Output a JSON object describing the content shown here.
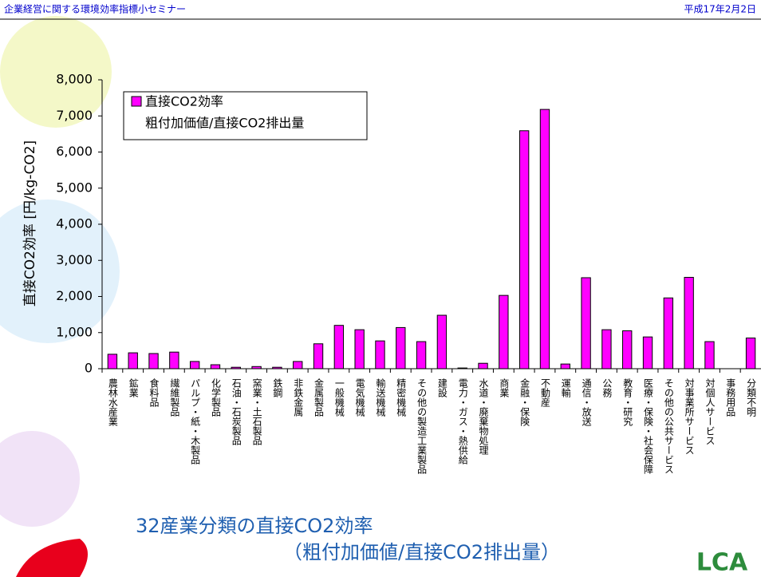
{
  "header": {
    "left": "企業経営に関する環境効率指標小セミナー",
    "right": "平成17年2月2日"
  },
  "chart_data": {
    "type": "bar",
    "y_axis_label": "直接CO2効率 [円/kg-CO2]",
    "legend_subtitle": "粗付加価値/直接CO2排出量",
    "categories": [
      "農林水産業",
      "鉱業",
      "食料品",
      "繊維製品",
      "パルプ・紙・木製品",
      "化学製品",
      "石油・石炭製品",
      "窯業・土石製品",
      "鉄鋼",
      "非鉄金属",
      "金属製品",
      "一般機械",
      "電気機械",
      "輸送機械",
      "精密機械",
      "その他の製造工業製品",
      "建設",
      "電力・ガス・熱供給",
      "水道・廃棄物処理",
      "商業",
      "金融・保険",
      "不動産",
      "運輸",
      "通信・放送",
      "公務",
      "教育・研究",
      "医療・保険・社会保障",
      "その他の公共サービス",
      "対事業所サービス",
      "対個人サービス",
      "事務用品",
      "分類不明"
    ],
    "series": [
      {
        "name": "直接CO2効率",
        "color": "#ff00ff",
        "values": [
          400,
          440,
          420,
          460,
          200,
          110,
          40,
          60,
          40,
          200,
          690,
          1200,
          1080,
          770,
          1140,
          750,
          1480,
          20,
          150,
          2030,
          6590,
          7180,
          130,
          2520,
          1080,
          1050,
          880,
          1960,
          2530,
          750,
          0,
          850
        ]
      }
    ],
    "ylim": [
      0,
      8000
    ],
    "yticks": [
      0,
      {
        "value": 1000,
        "label": "1,000"
      },
      {
        "value": 2000,
        "label": "2,000"
      },
      {
        "value": 3000,
        "label": "3,000"
      },
      {
        "value": 4000,
        "label": "4,000"
      },
      {
        "value": 5000,
        "label": "5,000"
      },
      {
        "value": 6000,
        "label": "6,000"
      },
      {
        "value": 7000,
        "label": "7,000"
      },
      {
        "value": 8000,
        "label": "8,000"
      }
    ],
    "grid": false
  },
  "footer": {
    "title_line1": "32産業分類の直接CO2効率",
    "title_line2": "（粗付加価値/直接CO2排出量）",
    "logo_text": "LCA"
  }
}
